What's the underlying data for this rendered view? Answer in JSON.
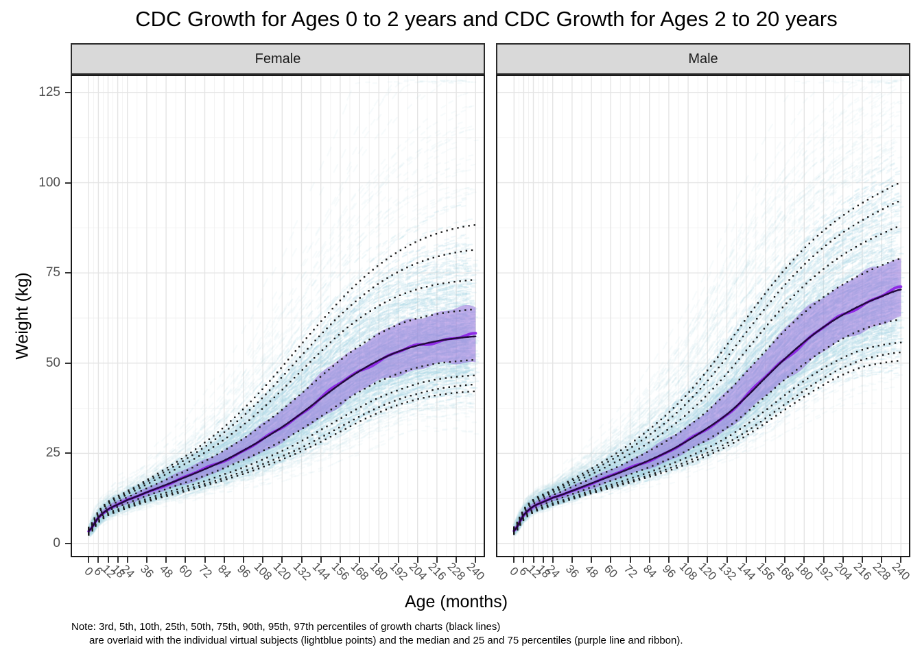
{
  "title": "CDC Growth for Ages 0 to 2 years and CDC Growth for Ages 2 to 20 years",
  "facets": [
    {
      "label": "Female"
    },
    {
      "label": "Male"
    }
  ],
  "axes": {
    "ylabel": "Weight (kg)",
    "xlabel": "Age (months)",
    "y_ticks": [
      0,
      25,
      50,
      75,
      100,
      125
    ],
    "x_ticks": [
      0,
      6,
      12,
      18,
      24,
      36,
      48,
      60,
      72,
      84,
      96,
      108,
      120,
      132,
      144,
      156,
      168,
      180,
      192,
      204,
      216,
      228,
      240
    ]
  },
  "note": {
    "line1": "Note: 3rd, 5th, 10th, 25th, 50th, 75th, 90th, 95th, 97th percentiles of growth charts (black lines)",
    "line2": "are overlaid with the individual virtual subjects (lightblue points) and the median and 25 and 75 percentiles (purple line and ribbon)."
  },
  "colors": {
    "lightblue_points": "#ADD8E6",
    "ribbon_purple": "#9370DB",
    "median_purple": "#8B1FE6",
    "dark_median_line": "#23093D",
    "percentile_dots": "#1C1C1C",
    "strip_bg": "#D9D9D9",
    "panel_border": "#1A1A1A",
    "grid_major": "#E4E4E4",
    "grid_minor": "#F1F1F1",
    "axis_text": "#4D4D4D"
  },
  "chart_data": {
    "type": "line",
    "title": "CDC Growth for Ages 0 to 2 years and CDC Growth for Ages 2 to 20 years",
    "xlabel": "Age (months)",
    "ylabel": "Weight (kg)",
    "xlim": [
      0,
      240
    ],
    "ylim": [
      0,
      130
    ],
    "grid": "major and minor, light gray on white, theme_bw",
    "legend_position": "none",
    "percentile_labels": [
      "3rd",
      "5th",
      "10th",
      "25th",
      "50th",
      "75th",
      "90th",
      "95th",
      "97th"
    ],
    "overlays": {
      "points": "individual virtual subjects (lightblue points)",
      "ribbon": "25th to 75th percentile of subjects (purple ribbon)",
      "median_line": "median of subjects (purple line)",
      "percentiles": "CDC growth chart percentiles (black dotted lines)"
    },
    "ages_months": [
      0,
      6,
      12,
      18,
      24,
      36,
      48,
      60,
      72,
      84,
      96,
      108,
      120,
      132,
      144,
      156,
      168,
      180,
      192,
      204,
      216,
      228,
      240
    ],
    "panels": [
      {
        "facet": "Female",
        "percentiles_kg": {
          "p3": [
            2.4,
            5.8,
            7.8,
            8.9,
            9.9,
            11.6,
            13.1,
            14.5,
            16.0,
            17.6,
            19.3,
            21.2,
            23.3,
            25.6,
            28.2,
            31.0,
            33.8,
            36.3,
            38.4,
            40.0,
            41.1,
            41.8,
            42.2
          ],
          "p5": [
            2.5,
            6.0,
            8.0,
            9.1,
            10.2,
            11.9,
            13.5,
            15.0,
            16.5,
            18.2,
            20.0,
            22.0,
            24.2,
            26.6,
            29.4,
            32.3,
            35.2,
            37.8,
            39.9,
            41.5,
            42.8,
            43.6,
            44.1
          ],
          "p10": [
            2.8,
            6.2,
            8.4,
            9.5,
            10.6,
            12.4,
            14.1,
            15.7,
            17.3,
            19.2,
            21.1,
            23.3,
            25.7,
            28.4,
            31.5,
            34.6,
            37.7,
            40.4,
            42.5,
            44.3,
            45.5,
            46.2,
            46.6
          ],
          "p25": [
            3.0,
            6.7,
            9.0,
            10.2,
            11.3,
            13.2,
            15.1,
            16.9,
            18.8,
            20.9,
            23.2,
            25.7,
            28.5,
            31.7,
            35.2,
            38.8,
            42.1,
            44.9,
            47.1,
            48.8,
            49.9,
            50.5,
            50.9
          ],
          "p50": [
            3.4,
            7.2,
            9.5,
            10.8,
            12.1,
            14.2,
            16.3,
            18.4,
            20.6,
            23.0,
            25.8,
            28.9,
            32.3,
            36.1,
            40.2,
            44.2,
            47.8,
            50.8,
            53.2,
            54.9,
            56.1,
            56.9,
            57.4
          ],
          "p75": [
            3.7,
            7.8,
            10.2,
            11.6,
            12.9,
            15.3,
            17.7,
            20.1,
            22.8,
            25.8,
            29.1,
            32.9,
            37.1,
            41.6,
            46.3,
            50.8,
            54.8,
            58.1,
            60.7,
            62.4,
            63.6,
            64.4,
            64.9
          ],
          "p90": [
            4.0,
            8.4,
            10.9,
            12.3,
            13.7,
            16.4,
            19.2,
            22.1,
            25.2,
            28.8,
            32.9,
            37.5,
            42.6,
            47.9,
            53.2,
            58.2,
            62.4,
            65.9,
            68.6,
            70.5,
            71.8,
            72.6,
            73.1
          ],
          "p95": [
            4.2,
            8.7,
            11.3,
            12.8,
            14.2,
            17.1,
            20.1,
            23.3,
            26.8,
            30.8,
            35.4,
            40.5,
            46.2,
            52.1,
            57.9,
            63.3,
            68.0,
            72.1,
            75.3,
            77.8,
            79.5,
            80.7,
            81.4
          ],
          "p97": [
            4.4,
            9.0,
            11.6,
            13.2,
            14.6,
            17.6,
            20.8,
            24.2,
            28.0,
            32.3,
            37.3,
            42.9,
            49.0,
            55.3,
            61.5,
            67.4,
            72.7,
            77.2,
            80.9,
            83.8,
            85.9,
            87.4,
            88.3
          ]
        }
      },
      {
        "facet": "Male",
        "percentiles_kg": {
          "p3": [
            2.6,
            6.6,
            8.6,
            9.7,
            10.7,
            12.3,
            13.9,
            15.4,
            16.9,
            18.5,
            20.2,
            22.2,
            24.4,
            26.9,
            29.9,
            33.4,
            37.1,
            40.7,
            44.0,
            46.8,
            48.9,
            50.0,
            50.7
          ],
          "p5": [
            2.7,
            6.7,
            8.8,
            9.9,
            10.9,
            12.5,
            14.2,
            15.8,
            17.3,
            19.0,
            20.8,
            22.9,
            25.2,
            27.8,
            31.0,
            34.7,
            38.6,
            42.4,
            45.9,
            48.7,
            50.9,
            52.2,
            53.0
          ],
          "p10": [
            2.9,
            7.0,
            9.1,
            10.2,
            11.2,
            12.9,
            14.7,
            16.3,
            18.0,
            19.8,
            21.8,
            24.0,
            26.5,
            29.4,
            32.9,
            36.9,
            41.1,
            45.1,
            48.6,
            51.5,
            53.7,
            55.0,
            55.7
          ],
          "p25": [
            3.2,
            7.4,
            9.6,
            10.8,
            11.9,
            13.7,
            15.6,
            17.4,
            19.2,
            21.2,
            23.4,
            25.9,
            28.8,
            32.1,
            36.2,
            40.8,
            45.5,
            49.8,
            53.6,
            56.8,
            59.3,
            61.0,
            62.1
          ],
          "p50": [
            3.5,
            7.9,
            10.3,
            11.5,
            12.7,
            14.6,
            16.7,
            18.7,
            20.8,
            23.1,
            25.6,
            28.6,
            32.0,
            35.8,
            40.6,
            46.0,
            51.2,
            55.9,
            60.0,
            63.4,
            66.2,
            68.5,
            70.4
          ],
          "p75": [
            3.9,
            8.5,
            11.0,
            12.3,
            13.5,
            15.7,
            18.0,
            20.4,
            22.9,
            25.7,
            28.8,
            32.5,
            36.8,
            41.8,
            47.5,
            53.4,
            59.0,
            64.0,
            68.3,
            71.8,
            74.7,
            77.1,
            79.0
          ],
          "p90": [
            4.2,
            9.0,
            11.6,
            12.9,
            14.2,
            16.6,
            19.2,
            21.9,
            24.8,
            28.1,
            31.8,
            36.2,
            41.3,
            47.1,
            53.5,
            60.0,
            66.1,
            71.5,
            76.1,
            80.0,
            83.2,
            85.8,
            88.0
          ],
          "p95": [
            4.4,
            9.3,
            11.9,
            13.3,
            14.7,
            17.3,
            20.1,
            23.1,
            26.4,
            30.1,
            34.3,
            39.3,
            45.1,
            51.6,
            58.5,
            65.3,
            71.7,
            77.3,
            82.1,
            86.2,
            89.6,
            92.5,
            95.0
          ],
          "p97": [
            4.5,
            9.5,
            12.2,
            13.6,
            15.0,
            17.8,
            20.8,
            24.0,
            27.6,
            31.7,
            36.3,
            41.7,
            48.0,
            55.0,
            62.3,
            69.4,
            76.0,
            81.8,
            86.7,
            90.9,
            94.4,
            97.4,
            100.0
          ]
        }
      }
    ]
  }
}
